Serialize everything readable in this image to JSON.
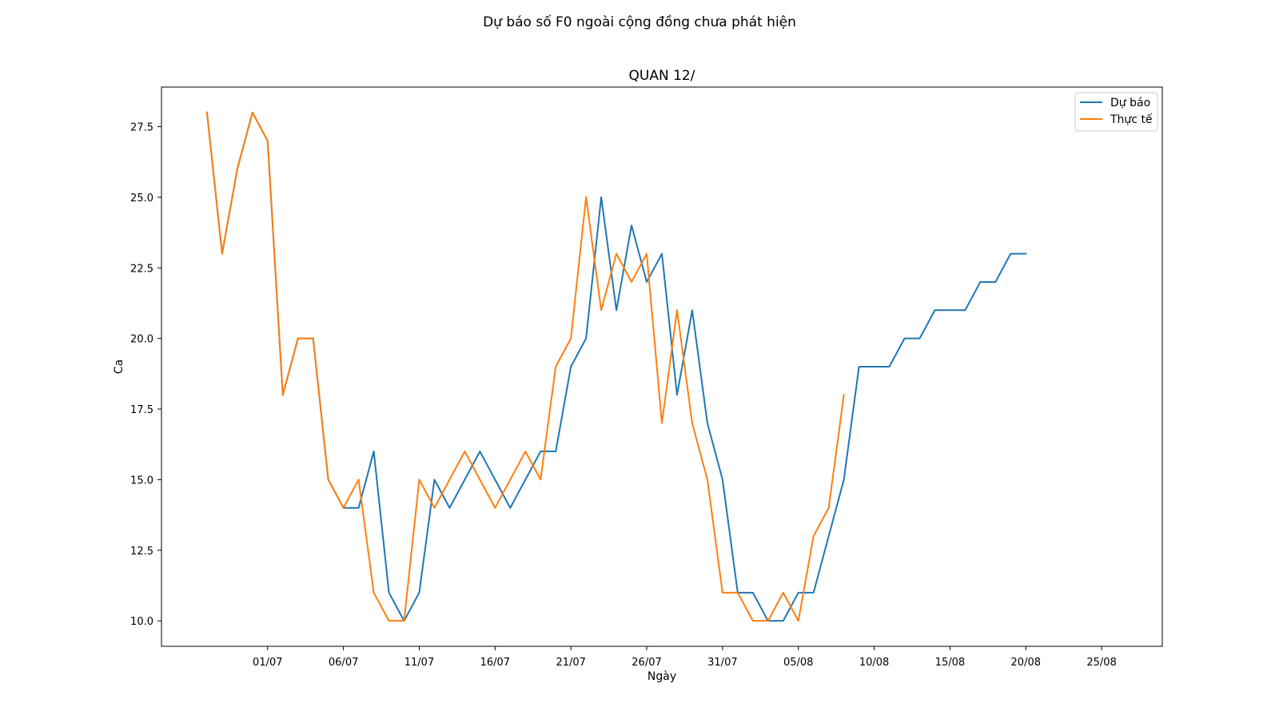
{
  "figure": {
    "suptitle": "Dự báo số F0 ngoài cộng đồng chưa phát hiện"
  },
  "chart_data": {
    "type": "line",
    "title": "QUAN 12/",
    "xlabel": "Ngày",
    "ylabel": "Ca",
    "x_start": "2021-06-27",
    "xlim": [
      "2021-06-24",
      "2021-08-29"
    ],
    "ylim": [
      9.1,
      28.9
    ],
    "xticks": [
      {
        "date": "2021-07-01",
        "label": "01/07"
      },
      {
        "date": "2021-07-06",
        "label": "06/07"
      },
      {
        "date": "2021-07-11",
        "label": "11/07"
      },
      {
        "date": "2021-07-16",
        "label": "16/07"
      },
      {
        "date": "2021-07-21",
        "label": "21/07"
      },
      {
        "date": "2021-07-26",
        "label": "26/07"
      },
      {
        "date": "2021-07-31",
        "label": "31/07"
      },
      {
        "date": "2021-08-05",
        "label": "05/08"
      },
      {
        "date": "2021-08-10",
        "label": "10/08"
      },
      {
        "date": "2021-08-15",
        "label": "15/08"
      },
      {
        "date": "2021-08-20",
        "label": "20/08"
      },
      {
        "date": "2021-08-25",
        "label": "25/08"
      }
    ],
    "yticks": [
      {
        "value": 10.0,
        "label": "10.0"
      },
      {
        "value": 12.5,
        "label": "12.5"
      },
      {
        "value": 15.0,
        "label": "15.0"
      },
      {
        "value": 17.5,
        "label": "17.5"
      },
      {
        "value": 20.0,
        "label": "20.0"
      },
      {
        "value": 22.5,
        "label": "22.5"
      },
      {
        "value": 25.0,
        "label": "25.0"
      },
      {
        "value": 27.5,
        "label": "27.5"
      }
    ],
    "grid": false,
    "legend_position": "top-right",
    "series": [
      {
        "name": "Dự báo",
        "color": "#1f77b4",
        "values": [
          28,
          23,
          26,
          28,
          27,
          18,
          20,
          20,
          15,
          14,
          14,
          16,
          11,
          10,
          11,
          15,
          14,
          15,
          16,
          15,
          14,
          15,
          16,
          16,
          19,
          20,
          25,
          21,
          24,
          22,
          23,
          18,
          21,
          17,
          15,
          11,
          11,
          10,
          10,
          11,
          11,
          13,
          15,
          19,
          19,
          19,
          20,
          20,
          21,
          21,
          21,
          22,
          22,
          23,
          23
        ]
      },
      {
        "name": "Thực tế",
        "color": "#ff7f0e",
        "values": [
          28,
          23,
          26,
          28,
          27,
          18,
          20,
          20,
          15,
          14,
          15,
          11,
          10,
          10,
          15,
          14,
          15,
          16,
          15,
          14,
          15,
          16,
          15,
          19,
          20,
          25,
          21,
          23,
          22,
          23,
          17,
          21,
          17,
          15,
          11,
          11,
          10,
          10,
          11,
          10,
          13,
          14,
          18
        ]
      }
    ]
  }
}
